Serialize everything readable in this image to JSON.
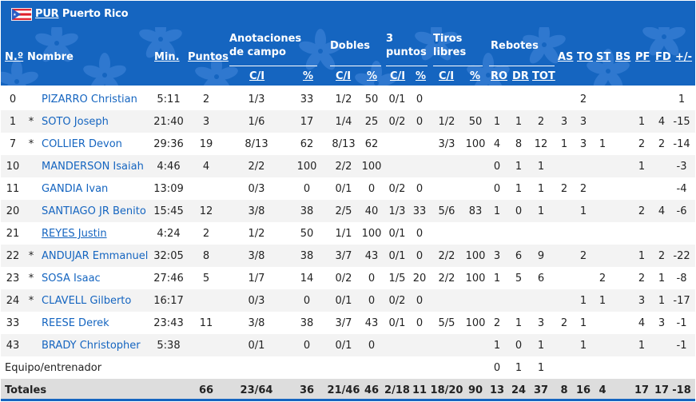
{
  "team": {
    "code": "PUR",
    "name": "Puerto Rico"
  },
  "colors": {
    "header_bg": "#1565c0",
    "row_alt": "#f3f3f3",
    "totals_bg": "#dddddd",
    "link": "#1565c0"
  },
  "headers": {
    "no": "N.º",
    "name": "Nombre",
    "min": "Min.",
    "pts": "Puntos",
    "fg_group": "Anotaciones de campo",
    "fg_ci": "C/I",
    "fg_pct": "%",
    "two_group": "Dobles",
    "two_ci": "C/I",
    "two_pct": "%",
    "three_group": "3 puntos",
    "three_ci": "C/I",
    "three_pct": "%",
    "ft_group": "Tiros libres",
    "ft_ci": "C/I",
    "ft_pct": "%",
    "reb_group": "Rebotes",
    "ro": "RO",
    "dr": "DR",
    "tot": "TOT",
    "as": "AS",
    "to": "TO",
    "st": "ST",
    "bs": "BS",
    "pf": "PF",
    "fd": "FD",
    "pm": "+/-"
  },
  "players": [
    {
      "no": "0",
      "starter": "",
      "name": "PIZARRO Christian",
      "link": false,
      "min": "5:11",
      "pts": "2",
      "fg_ci": "1/3",
      "fg_pct": "33",
      "two_ci": "1/2",
      "two_pct": "50",
      "three_ci": "0/1",
      "three_pct": "0",
      "ft_ci": "",
      "ft_pct": "",
      "ro": "",
      "dr": "",
      "tot": "",
      "as": "",
      "to": "2",
      "st": "",
      "bs": "",
      "pf": "",
      "fd": "",
      "pm": "1"
    },
    {
      "no": "1",
      "starter": "*",
      "name": "SOTO Joseph",
      "link": false,
      "min": "21:40",
      "pts": "3",
      "fg_ci": "1/6",
      "fg_pct": "17",
      "two_ci": "1/4",
      "two_pct": "25",
      "three_ci": "0/2",
      "three_pct": "0",
      "ft_ci": "1/2",
      "ft_pct": "50",
      "ro": "1",
      "dr": "1",
      "tot": "2",
      "as": "3",
      "to": "3",
      "st": "",
      "bs": "",
      "pf": "1",
      "fd": "4",
      "pm": "-15"
    },
    {
      "no": "7",
      "starter": "*",
      "name": "COLLIER Devon",
      "link": false,
      "min": "29:36",
      "pts": "19",
      "fg_ci": "8/13",
      "fg_pct": "62",
      "two_ci": "8/13",
      "two_pct": "62",
      "three_ci": "",
      "three_pct": "",
      "ft_ci": "3/3",
      "ft_pct": "100",
      "ro": "4",
      "dr": "8",
      "tot": "12",
      "as": "1",
      "to": "3",
      "st": "1",
      "bs": "",
      "pf": "2",
      "fd": "2",
      "pm": "-14"
    },
    {
      "no": "10",
      "starter": "",
      "name": "MANDERSON Isaiah",
      "link": false,
      "min": "4:46",
      "pts": "4",
      "fg_ci": "2/2",
      "fg_pct": "100",
      "two_ci": "2/2",
      "two_pct": "100",
      "three_ci": "",
      "three_pct": "",
      "ft_ci": "",
      "ft_pct": "",
      "ro": "0",
      "dr": "1",
      "tot": "1",
      "as": "",
      "to": "",
      "st": "",
      "bs": "",
      "pf": "1",
      "fd": "",
      "pm": "-3"
    },
    {
      "no": "11",
      "starter": "",
      "name": "GANDIA Ivan",
      "link": false,
      "min": "13:09",
      "pts": "",
      "fg_ci": "0/3",
      "fg_pct": "0",
      "two_ci": "0/1",
      "two_pct": "0",
      "three_ci": "0/2",
      "three_pct": "0",
      "ft_ci": "",
      "ft_pct": "",
      "ro": "0",
      "dr": "1",
      "tot": "1",
      "as": "2",
      "to": "2",
      "st": "",
      "bs": "",
      "pf": "",
      "fd": "",
      "pm": "-4"
    },
    {
      "no": "20",
      "starter": "",
      "name": "SANTIAGO JR Benito",
      "link": false,
      "min": "15:45",
      "pts": "12",
      "fg_ci": "3/8",
      "fg_pct": "38",
      "two_ci": "2/5",
      "two_pct": "40",
      "three_ci": "1/3",
      "three_pct": "33",
      "ft_ci": "5/6",
      "ft_pct": "83",
      "ro": "1",
      "dr": "0",
      "tot": "1",
      "as": "",
      "to": "1",
      "st": "",
      "bs": "",
      "pf": "2",
      "fd": "4",
      "pm": "-6"
    },
    {
      "no": "21",
      "starter": "",
      "name": "REYES Justin",
      "link": true,
      "min": "4:24",
      "pts": "2",
      "fg_ci": "1/2",
      "fg_pct": "50",
      "two_ci": "1/1",
      "two_pct": "100",
      "three_ci": "0/1",
      "three_pct": "0",
      "ft_ci": "",
      "ft_pct": "",
      "ro": "",
      "dr": "",
      "tot": "",
      "as": "",
      "to": "",
      "st": "",
      "bs": "",
      "pf": "",
      "fd": "",
      "pm": ""
    },
    {
      "no": "22",
      "starter": "*",
      "name": "ANDUJAR Emmanuel",
      "link": false,
      "min": "32:05",
      "pts": "8",
      "fg_ci": "3/8",
      "fg_pct": "38",
      "two_ci": "3/7",
      "two_pct": "43",
      "three_ci": "0/1",
      "three_pct": "0",
      "ft_ci": "2/2",
      "ft_pct": "100",
      "ro": "3",
      "dr": "6",
      "tot": "9",
      "as": "",
      "to": "2",
      "st": "",
      "bs": "",
      "pf": "1",
      "fd": "2",
      "pm": "-22"
    },
    {
      "no": "23",
      "starter": "*",
      "name": "SOSA Isaac",
      "link": false,
      "min": "27:46",
      "pts": "5",
      "fg_ci": "1/7",
      "fg_pct": "14",
      "two_ci": "0/2",
      "two_pct": "0",
      "three_ci": "1/5",
      "three_pct": "20",
      "ft_ci": "2/2",
      "ft_pct": "100",
      "ro": "1",
      "dr": "5",
      "tot": "6",
      "as": "",
      "to": "",
      "st": "2",
      "bs": "",
      "pf": "2",
      "fd": "1",
      "pm": "-8"
    },
    {
      "no": "24",
      "starter": "*",
      "name": "CLAVELL Gilberto",
      "link": false,
      "min": "16:17",
      "pts": "",
      "fg_ci": "0/3",
      "fg_pct": "0",
      "two_ci": "0/1",
      "two_pct": "0",
      "three_ci": "0/2",
      "three_pct": "0",
      "ft_ci": "",
      "ft_pct": "",
      "ro": "",
      "dr": "",
      "tot": "",
      "as": "",
      "to": "1",
      "st": "1",
      "bs": "",
      "pf": "3",
      "fd": "1",
      "pm": "-17"
    },
    {
      "no": "33",
      "starter": "",
      "name": "REESE Derek",
      "link": false,
      "min": "23:43",
      "pts": "11",
      "fg_ci": "3/8",
      "fg_pct": "38",
      "two_ci": "3/7",
      "two_pct": "43",
      "three_ci": "0/1",
      "three_pct": "0",
      "ft_ci": "5/5",
      "ft_pct": "100",
      "ro": "2",
      "dr": "1",
      "tot": "3",
      "as": "2",
      "to": "1",
      "st": "",
      "bs": "",
      "pf": "4",
      "fd": "3",
      "pm": "-1"
    },
    {
      "no": "43",
      "starter": "",
      "name": "BRADY Christopher",
      "link": false,
      "min": "5:38",
      "pts": "",
      "fg_ci": "0/1",
      "fg_pct": "0",
      "two_ci": "0/1",
      "two_pct": "0",
      "three_ci": "",
      "three_pct": "",
      "ft_ci": "",
      "ft_pct": "",
      "ro": "1",
      "dr": "0",
      "tot": "1",
      "as": "",
      "to": "1",
      "st": "",
      "bs": "",
      "pf": "1",
      "fd": "",
      "pm": "-1"
    }
  ],
  "team_row": {
    "label": "Equipo/entrenador",
    "ro": "0",
    "dr": "1",
    "tot": "1"
  },
  "totals": {
    "label": "Totales",
    "pts": "66",
    "fg_ci": "23/64",
    "fg_pct": "36",
    "two_ci": "21/46",
    "two_pct": "46",
    "three_ci": "2/18",
    "three_pct": "11",
    "ft_ci": "18/20",
    "ft_pct": "90",
    "ro": "13",
    "dr": "24",
    "tot": "37",
    "as": "8",
    "to": "16",
    "st": "4",
    "bs": "",
    "pf": "17",
    "fd": "17",
    "pm": "-18"
  }
}
